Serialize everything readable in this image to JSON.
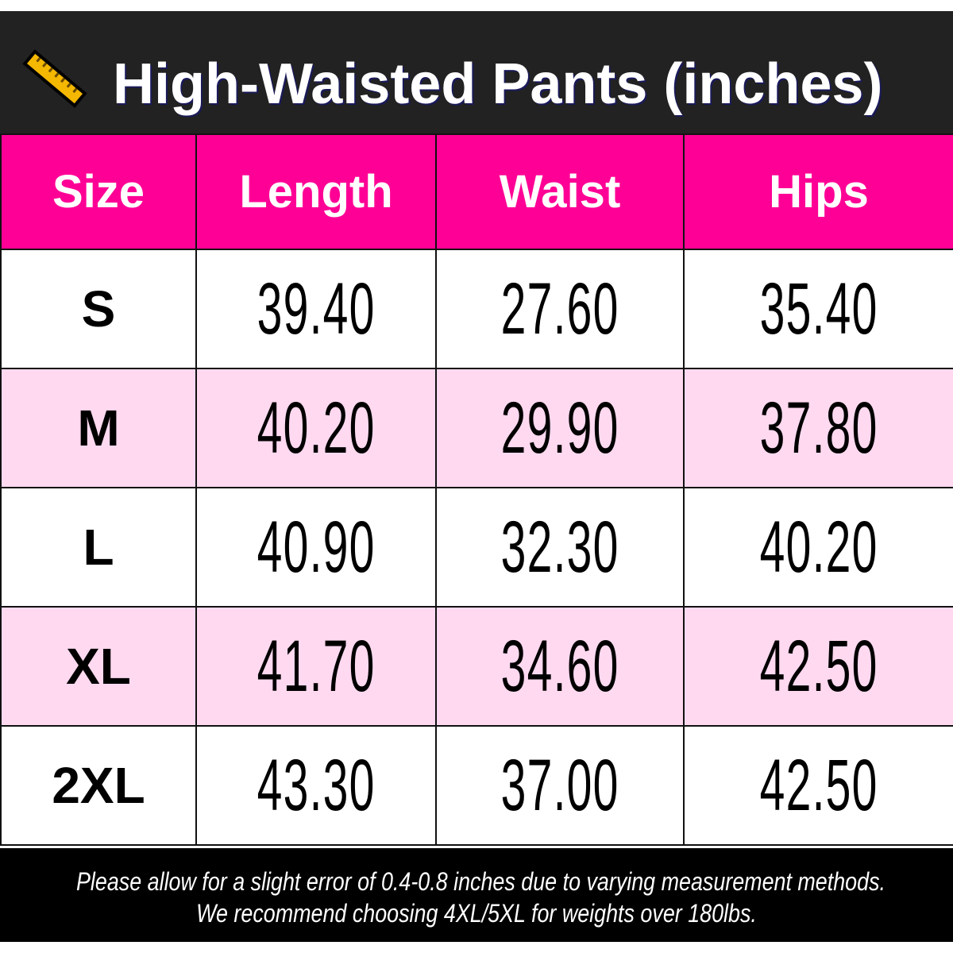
{
  "title": "High-Waisted Pants (inches)",
  "icon": "ruler-icon",
  "colors": {
    "title_bg": "#222222",
    "header_bg": "#ff0096",
    "alt_row": "#ffd9f0",
    "footer_bg": "#000000",
    "icon": "#f5b800"
  },
  "table": {
    "headers": [
      "Size",
      "Length",
      "Waist",
      "Hips"
    ],
    "rows": [
      {
        "size": "S",
        "length": "39.40",
        "waist": "27.60",
        "hips": "35.40"
      },
      {
        "size": "M",
        "length": "40.20",
        "waist": "29.90",
        "hips": "37.80"
      },
      {
        "size": "L",
        "length": "40.90",
        "waist": "32.30",
        "hips": "40.20"
      },
      {
        "size": "XL",
        "length": "41.70",
        "waist": "34.60",
        "hips": "42.50"
      },
      {
        "size": "2XL",
        "length": "43.30",
        "waist": "37.00",
        "hips": "42.50"
      }
    ]
  },
  "footer": {
    "line1": "Please allow for a slight error of 0.4-0.8 inches due to varying measurement methods.",
    "line2": "We recommend choosing 4XL/5XL for weights over 180lbs."
  }
}
